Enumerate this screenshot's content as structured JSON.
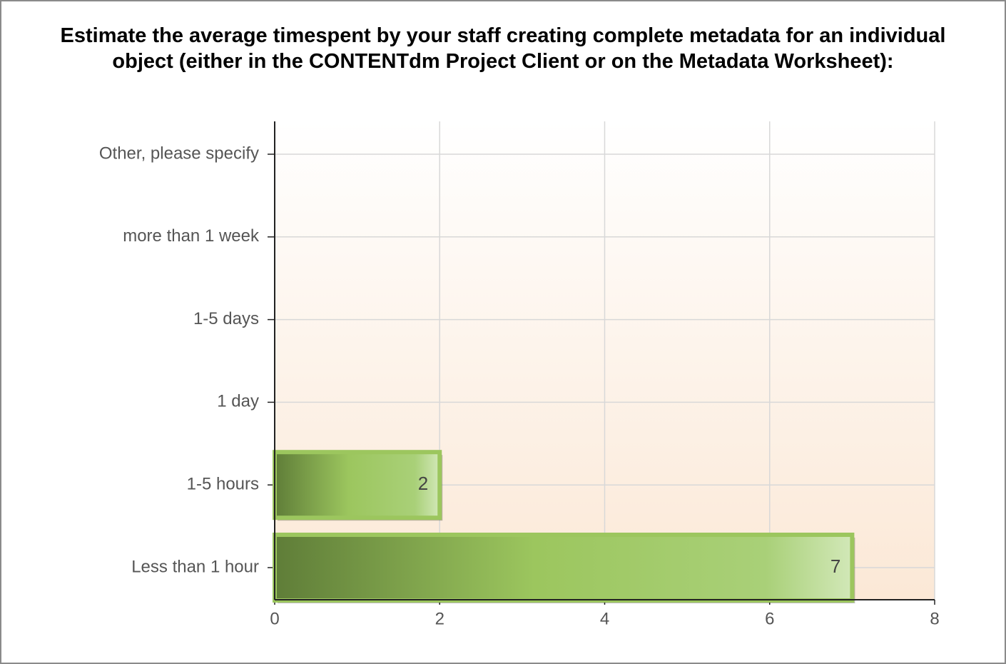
{
  "chart_data": {
    "type": "bar",
    "orientation": "horizontal",
    "title": "Estimate the average timespent by your staff creating complete metadata for an individual object (either in the CONTENTdm Project Client or on the Metadata Worksheet):",
    "categories": [
      "Other, please specify",
      "more than 1 week",
      "1-5 days",
      "1 day",
      "1-5 hours",
      "Less than 1 hour"
    ],
    "values": [
      0,
      0,
      0,
      0,
      2,
      7
    ],
    "color": "#9cc65e",
    "xlim": [
      0,
      8
    ],
    "xticks": [
      0,
      2,
      4,
      6,
      8
    ],
    "grid": true
  }
}
